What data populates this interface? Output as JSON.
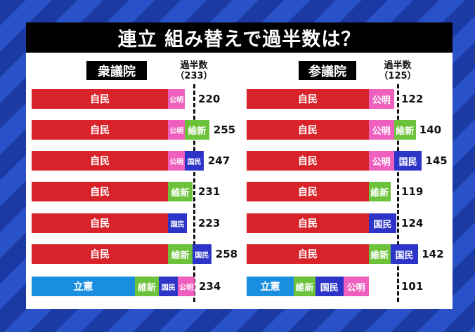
{
  "title": "連立 組み替えで過半数は？",
  "colors": {
    "自民": "#d8232a",
    "公明": "#ef5fbd",
    "維新": "#6cc23a",
    "国民": "#2d34c8",
    "立憲": "#1a8fdf"
  },
  "chart_data": [
    {
      "type": "bar",
      "chamber": "衆議院",
      "majority_label": "過半数",
      "majority": 233,
      "majority_display": "（233）",
      "rows": [
        {
          "total": 220,
          "parties": [
            {
              "name": "自民",
              "seats": 196
            },
            {
              "name": "公明",
              "seats": 24
            }
          ]
        },
        {
          "total": 255,
          "parties": [
            {
              "name": "自民",
              "seats": 196
            },
            {
              "name": "公明",
              "seats": 24
            },
            {
              "name": "維新",
              "seats": 35
            }
          ]
        },
        {
          "total": 247,
          "parties": [
            {
              "name": "自民",
              "seats": 196
            },
            {
              "name": "公明",
              "seats": 24
            },
            {
              "name": "国民",
              "seats": 27
            }
          ]
        },
        {
          "total": 231,
          "parties": [
            {
              "name": "自民",
              "seats": 196
            },
            {
              "name": "維新",
              "seats": 35
            }
          ]
        },
        {
          "total": 223,
          "parties": [
            {
              "name": "自民",
              "seats": 196
            },
            {
              "name": "国民",
              "seats": 27
            }
          ]
        },
        {
          "total": 258,
          "parties": [
            {
              "name": "自民",
              "seats": 196
            },
            {
              "name": "維新",
              "seats": 35
            },
            {
              "name": "国民",
              "seats": 27
            }
          ]
        },
        {
          "total": 234,
          "parties": [
            {
              "name": "立憲",
              "seats": 148
            },
            {
              "name": "維新",
              "seats": 35
            },
            {
              "name": "国民",
              "seats": 27
            },
            {
              "name": "公明",
              "seats": 24
            }
          ]
        }
      ]
    },
    {
      "type": "bar",
      "chamber": "参議院",
      "majority_label": "過半数",
      "majority": 125,
      "majority_display": "（125）",
      "rows": [
        {
          "total": 122,
          "parties": [
            {
              "name": "自民",
              "seats": 101
            },
            {
              "name": "公明",
              "seats": 21
            }
          ]
        },
        {
          "total": 140,
          "parties": [
            {
              "name": "自民",
              "seats": 101
            },
            {
              "name": "公明",
              "seats": 21
            },
            {
              "name": "維新",
              "seats": 18
            }
          ]
        },
        {
          "total": 145,
          "parties": [
            {
              "name": "自民",
              "seats": 101
            },
            {
              "name": "公明",
              "seats": 21
            },
            {
              "name": "国民",
              "seats": 23
            }
          ]
        },
        {
          "total": 119,
          "parties": [
            {
              "name": "自民",
              "seats": 101
            },
            {
              "name": "維新",
              "seats": 18
            }
          ]
        },
        {
          "total": 124,
          "parties": [
            {
              "name": "自民",
              "seats": 101
            },
            {
              "name": "国民",
              "seats": 23
            }
          ]
        },
        {
          "total": 142,
          "parties": [
            {
              "name": "自民",
              "seats": 101
            },
            {
              "name": "維新",
              "seats": 18
            },
            {
              "name": "国民",
              "seats": 23
            }
          ]
        },
        {
          "total": 101,
          "parties": [
            {
              "name": "立憲",
              "seats": 39
            },
            {
              "name": "維新",
              "seats": 18
            },
            {
              "name": "国民",
              "seats": 23
            },
            {
              "name": "公明",
              "seats": 21
            }
          ]
        }
      ]
    }
  ]
}
